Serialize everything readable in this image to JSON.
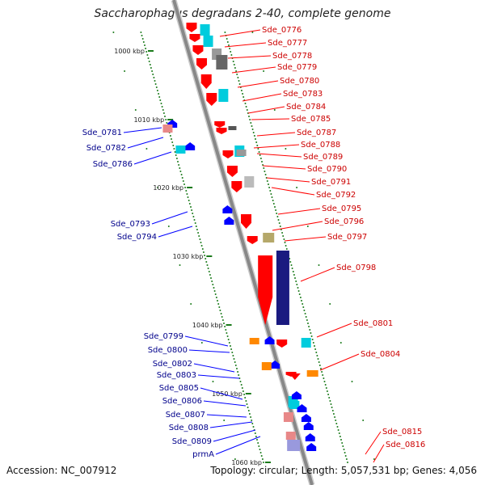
{
  "title": "Saccharophagus degradans 2-40, complete genome",
  "accession": "Accession: NC_007912",
  "summary": "Topology: circular; Length: 5,057,531 bp; Genes: 4,056",
  "colors": {
    "forward": "#ff0000",
    "reverse": "#0000ff",
    "cyan": "#00ccdd",
    "gray": "#999999",
    "dark_gray": "#666666",
    "pink": "#e88888",
    "olive": "#b5a86a",
    "orange": "#ff8800",
    "navy": "#1a1a80",
    "lavender": "#9999dd",
    "ruler": "#888888",
    "tick": "#1a7a1a",
    "label_red": "#cc0000",
    "label_blue": "#00008b"
  },
  "ruler_labels": [
    "1000 kbp",
    "1010 kbp",
    "1020 kbp",
    "1030 kbp",
    "1040 kbp",
    "1050 kbp",
    "1060 kbp"
  ],
  "right_labels": [
    "Sde_0776",
    "Sde_0777",
    "Sde_0778",
    "Sde_0779",
    "Sde_0780",
    "Sde_0783",
    "Sde_0784",
    "Sde_0785",
    "Sde_0787",
    "Sde_0788",
    "Sde_0789",
    "Sde_0790",
    "Sde_0791",
    "Sde_0792",
    "Sde_0795",
    "Sde_0796",
    "Sde_0797",
    "Sde_0798",
    "Sde_0801",
    "Sde_0804",
    "Sde_0815",
    "Sde_0816"
  ],
  "left_labels": [
    "Sde_0781",
    "Sde_0782",
    "Sde_0786",
    "Sde_0793",
    "Sde_0794",
    "Sde_0799",
    "Sde_0800",
    "Sde_0802",
    "Sde_0803",
    "Sde_0805",
    "Sde_0806",
    "Sde_0807",
    "Sde_0808",
    "Sde_0809",
    "prmA"
  ]
}
